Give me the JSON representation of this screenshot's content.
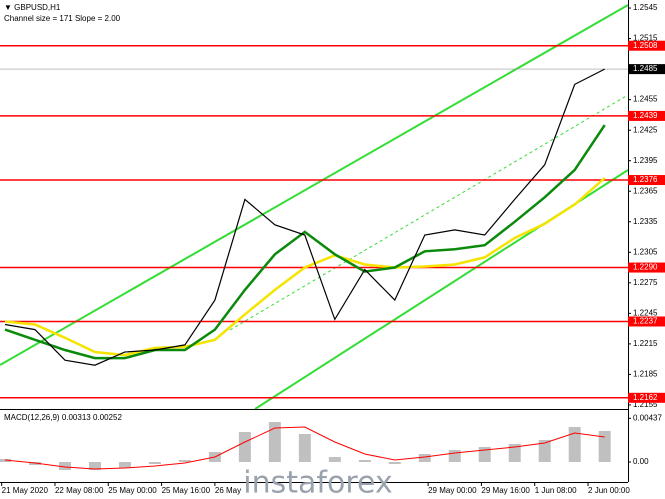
{
  "chart_data": {
    "type": "line",
    "title": "GBPUSD,H1",
    "subtitle": "Channel size = 171 Slope = 2.00",
    "watermark": "instaforex",
    "x": [
      0,
      9,
      18,
      27,
      36,
      45,
      54,
      63,
      72,
      81,
      90,
      99,
      108,
      117,
      126,
      135,
      144,
      153,
      162,
      171,
      180
    ],
    "xlim": [
      -1.5,
      187
    ],
    "xticks": [
      {
        "value": -1,
        "label": "21 May 2020"
      },
      {
        "value": 15,
        "label": "22 May 08:00"
      },
      {
        "value": 31,
        "label": "25 May 00:00"
      },
      {
        "value": 47,
        "label": "25 May 16:00"
      },
      {
        "value": 63,
        "label": "26 May"
      },
      {
        "value": 127,
        "label": "29 May 00:00"
      },
      {
        "value": 143,
        "label": "29 May 16:00"
      },
      {
        "value": 159,
        "label": "1 Jun 08:00"
      },
      {
        "value": 175,
        "label": "2 Jun 00:00"
      }
    ],
    "ylim": [
      1.2151,
      1.2548
    ],
    "yticks": [
      1.2545,
      1.2515,
      1.2455,
      1.2425,
      1.2395,
      1.2365,
      1.2335,
      1.2305,
      1.2275,
      1.2245,
      1.2215,
      1.2185,
      1.2155
    ],
    "series": [
      {
        "color": "#000000",
        "values": [
          1.2234,
          1.2229,
          1.2199,
          1.2194,
          1.2207,
          1.2209,
          1.2214,
          1.2258,
          1.2357,
          1.2332,
          1.2322,
          1.2239,
          1.2288,
          1.2258,
          1.2322,
          1.2327,
          1.2322,
          1.2357,
          1.2391,
          1.247,
          1.2485
        ]
      },
      {
        "color": "#0a8a0a",
        "values": [
          1.2229,
          1.2219,
          1.2209,
          1.2201,
          1.2201,
          1.2209,
          1.2209,
          1.2229,
          1.2268,
          1.2303,
          1.2325,
          1.2303,
          1.2286,
          1.229,
          1.2306,
          1.2308,
          1.2312,
          1.2335,
          1.2359,
          1.2386,
          1.243
        ]
      },
      {
        "color": "#f5e400",
        "values": [
          1.2237,
          1.2234,
          1.2221,
          1.2207,
          1.2204,
          1.2211,
          1.2212,
          1.2219,
          1.2244,
          1.2268,
          1.229,
          1.2302,
          1.2293,
          1.229,
          1.2291,
          1.2293,
          1.23,
          1.2319,
          1.2333,
          1.2352,
          1.2378
        ]
      }
    ],
    "hline_color": "#ff0000",
    "hlines": [
      1.2508,
      1.2439,
      1.2376,
      {
        "value": 1.229,
        "label": "1.2290"
      },
      1.2237,
      1.2162
    ],
    "last_price": 1.2485,
    "macd": {
      "label": "MACD(12,26,9)",
      "macd_value": 0.00313,
      "signal_value": 0.00252,
      "ylim": [
        -0.0018,
        0.0052
      ],
      "yticks": [
        0.00437,
        {
          "value": 0,
          "label": "0.00"
        }
      ],
      "histogram": {
        "color": "#c0c0c0",
        "values": [
          0.0003,
          -0.0003,
          -0.0008,
          -0.0008,
          -0.0006,
          -0.0002,
          0.0002,
          0.001,
          0.003,
          0.004,
          0.0028,
          0.0005,
          0.0002,
          -0.0002,
          0.0008,
          0.0012,
          0.0015,
          0.0018,
          0.0022,
          0.0035,
          0.0031
        ]
      },
      "signal": {
        "color": "#ff0000",
        "values": [
          0.0002,
          -0.0001,
          -0.0005,
          -0.0007,
          -0.0006,
          -0.0004,
          -0.0001,
          0.0005,
          0.002,
          0.0034,
          0.0035,
          0.002,
          0.0008,
          0.0002,
          0.0005,
          0.0009,
          0.0012,
          0.0015,
          0.0019,
          0.0029,
          0.0025
        ]
      }
    }
  }
}
